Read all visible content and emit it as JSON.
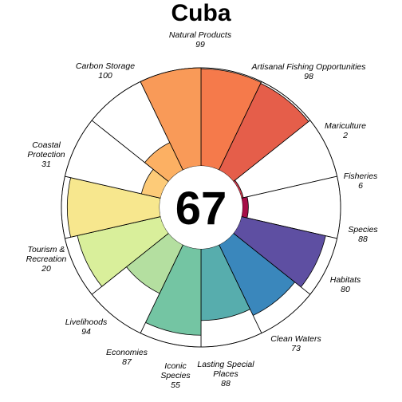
{
  "title": "Cuba",
  "overall_score": "67",
  "chart_data": {
    "type": "flower",
    "title": "Cuba",
    "center_value": 67,
    "ylim": [
      0,
      100
    ],
    "categories": [
      {
        "label": "Natural Products",
        "value": 99,
        "color": "#f57a4b"
      },
      {
        "label": "Artisanal Fishing Opportunities",
        "value": 98,
        "color": "#e55e4a"
      },
      {
        "label": "Mariculture",
        "value": 2,
        "color": "#d03a4e"
      },
      {
        "label": "Fisheries",
        "value": 6,
        "color": "#a50e47"
      },
      {
        "label": "Species",
        "value": 88,
        "color": "#5e4fa2"
      },
      {
        "label": "Habitats",
        "value": 80,
        "color": "#3a87bc"
      },
      {
        "label": "Clean Waters",
        "value": 73,
        "color": "#57adad"
      },
      {
        "label": "Lasting Special Places",
        "value": 88,
        "color": "#74c5a3"
      },
      {
        "label": "Iconic Species",
        "value": 55,
        "color": "#b4dfa0"
      },
      {
        "label": "Economies",
        "value": 87,
        "color": "#d9ef9b"
      },
      {
        "label": "Livelihoods",
        "value": 94,
        "color": "#f7e78e"
      },
      {
        "label": "Tourism & Recreation",
        "value": 20,
        "color": "#fdcb78"
      },
      {
        "label": "Coastal Protection",
        "value": 31,
        "color": "#fcb063"
      },
      {
        "label": "Carbon Storage",
        "value": 100,
        "color": "#f99a58"
      }
    ]
  },
  "colors": {
    "outline": "#000000",
    "background": "#ffffff"
  }
}
